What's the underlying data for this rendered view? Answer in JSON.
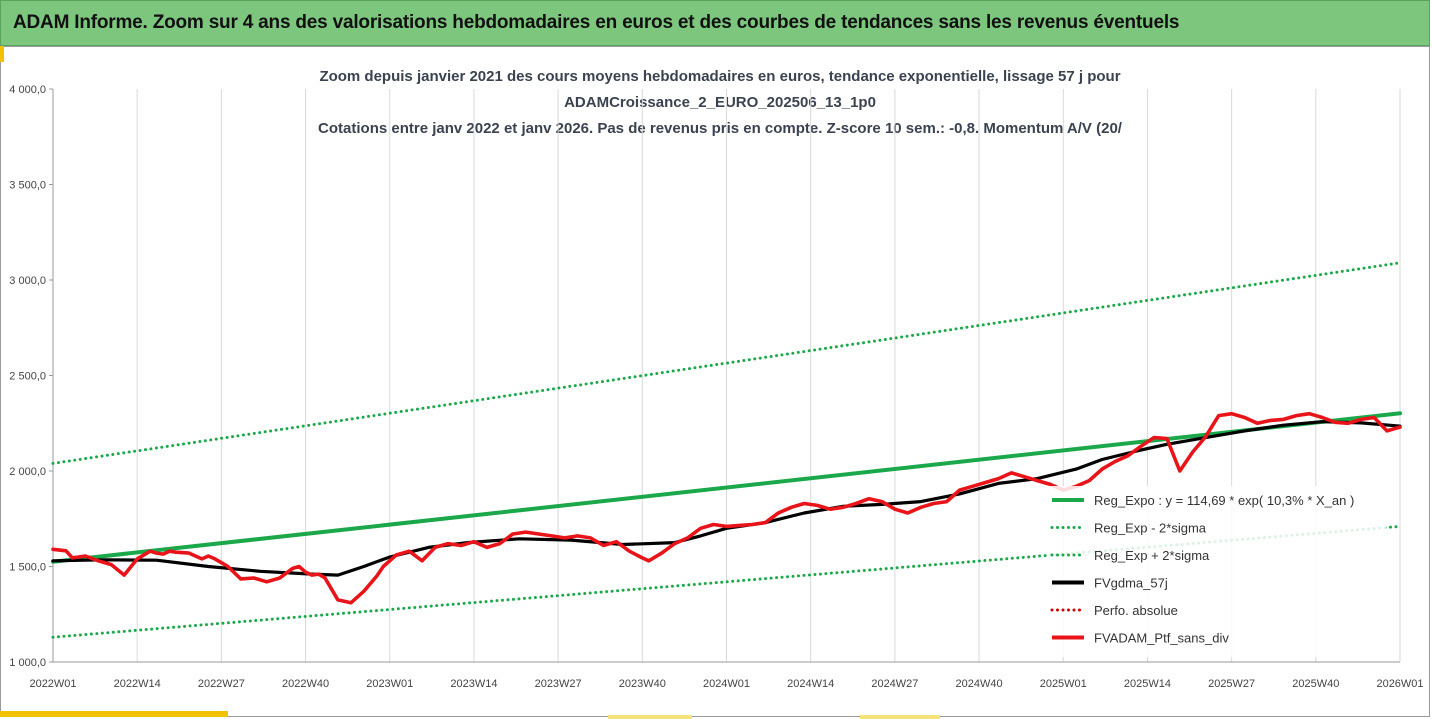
{
  "banner": {
    "title": "ADAM Informe. Zoom sur 4 ans des valorisations hebdomadaires en euros et des courbes de tendances sans les revenus éventuels"
  },
  "chart_data": {
    "type": "line",
    "title_lines": [
      "Zoom depuis janvier 2021 des cours moyens hebdomadaires  en euros, tendance exponentielle, lissage 57 j pour",
      "ADAMCroissance_2_EURO_202506_13_1p0",
      "Cotations entre janv 2022 et janv 2026. Pas de revenus pris en compte. Z-score 10 sem.: -0,8. Momentum A/V (20/"
    ],
    "ylim": [
      1000,
      4000
    ],
    "yticks": [
      1000,
      1500,
      2000,
      2500,
      3000,
      3500,
      4000
    ],
    "ytick_labels": [
      "1 000,0",
      "1 500,0",
      "2 000,0",
      "2 500,0",
      "3 000,0",
      "3 500,0",
      "4 000,0"
    ],
    "x_range": [
      0,
      208
    ],
    "xticks": [
      0,
      13,
      26,
      39,
      52,
      65,
      78,
      91,
      104,
      117,
      130,
      143,
      156,
      169,
      182,
      195,
      208
    ],
    "xtick_labels": [
      "2022W01",
      "2022W14",
      "2022W27",
      "2022W40",
      "2023W01",
      "2023W14",
      "2023W27",
      "2023W40",
      "2024W01",
      "2024W14",
      "2024W27",
      "2024W40",
      "2025W01",
      "2025W14",
      "2025W27",
      "2025W40",
      "2026W01"
    ],
    "grid": "vertical",
    "legend_position": "right",
    "series": [
      {
        "name": "Reg_Expo : y = 114,69 * exp( 10,3% *  X_an )",
        "color": "#1aa84a",
        "style": "solid",
        "x": [
          0,
          208
        ],
        "y_start": 1525,
        "y_end": 2302
      },
      {
        "name": "Reg_Exp - 2*sigma",
        "color": "#1aa84a",
        "style": "dotted",
        "x": [
          0,
          208
        ],
        "y_start": 1130,
        "y_end": 1710
      },
      {
        "name": "Reg_Exp + 2*sigma",
        "color": "#1aa84a",
        "style": "dotted",
        "x": [
          0,
          208
        ],
        "y_start": 2040,
        "y_end": 3090
      },
      {
        "name": "FVgdma_57j",
        "color": "#000000",
        "style": "solid",
        "x": [
          0,
          8,
          16,
          24,
          32,
          40,
          44,
          48,
          52,
          58,
          64,
          72,
          80,
          88,
          96,
          100,
          104,
          110,
          116,
          122,
          128,
          134,
          140,
          146,
          152,
          158,
          162,
          168,
          172,
          178,
          184,
          190,
          196,
          202,
          208
        ],
        "y": [
          1530,
          1535,
          1533,
          1500,
          1475,
          1460,
          1455,
          1500,
          1550,
          1600,
          1625,
          1645,
          1638,
          1615,
          1625,
          1660,
          1700,
          1730,
          1780,
          1815,
          1825,
          1840,
          1880,
          1935,
          1960,
          2010,
          2060,
          2110,
          2140,
          2175,
          2210,
          2240,
          2258,
          2252,
          2235
        ]
      },
      {
        "name": "Perfo. absolue",
        "color": "#cc0000",
        "style": "dotted",
        "x": [],
        "y": []
      },
      {
        "name": "FVADAM_Ptf_sans_div",
        "color": "#e8141a",
        "style": "solid",
        "x": [
          0,
          2,
          3,
          5,
          7,
          9,
          11,
          13,
          15,
          16,
          17,
          18,
          19,
          21,
          23,
          24,
          25,
          26,
          27,
          29,
          31,
          33,
          35,
          37,
          38,
          39,
          40,
          41,
          42,
          44,
          46,
          48,
          50,
          51,
          53,
          55,
          57,
          59,
          61,
          63,
          65,
          67,
          69,
          71,
          73,
          75,
          77,
          79,
          81,
          83,
          85,
          87,
          89,
          91,
          92,
          94,
          96,
          98,
          100,
          102,
          104,
          106,
          108,
          110,
          112,
          114,
          116,
          118,
          120,
          122,
          124,
          126,
          128,
          130,
          132,
          134,
          136,
          138,
          140,
          142,
          144,
          146,
          148,
          150,
          152,
          154,
          156,
          158,
          160,
          162,
          164,
          166,
          168,
          170,
          172,
          174,
          176,
          178,
          180,
          182,
          184,
          186,
          188,
          190,
          192,
          194,
          196,
          198,
          200,
          202,
          204,
          206,
          208
        ],
        "y": [
          1590,
          1582,
          1545,
          1555,
          1530,
          1510,
          1455,
          1540,
          1580,
          1570,
          1565,
          1580,
          1575,
          1570,
          1540,
          1555,
          1540,
          1520,
          1500,
          1435,
          1440,
          1420,
          1440,
          1490,
          1500,
          1470,
          1455,
          1460,
          1440,
          1325,
          1310,
          1370,
          1450,
          1500,
          1560,
          1580,
          1530,
          1600,
          1620,
          1610,
          1630,
          1600,
          1620,
          1670,
          1680,
          1670,
          1660,
          1650,
          1660,
          1650,
          1610,
          1630,
          1580,
          1545,
          1530,
          1570,
          1620,
          1650,
          1700,
          1720,
          1710,
          1715,
          1720,
          1730,
          1780,
          1810,
          1830,
          1820,
          1800,
          1810,
          1830,
          1855,
          1840,
          1800,
          1780,
          1810,
          1830,
          1840,
          1900,
          1920,
          1940,
          1960,
          1990,
          1970,
          1950,
          1930,
          1900,
          1920,
          1950,
          2010,
          2050,
          2080,
          2130,
          2175,
          2170,
          2000,
          2100,
          2180,
          2290,
          2300,
          2280,
          2250,
          2265,
          2270,
          2290,
          2300,
          2280,
          2255,
          2250,
          2270,
          2280,
          2210,
          2230
        ]
      }
    ]
  }
}
